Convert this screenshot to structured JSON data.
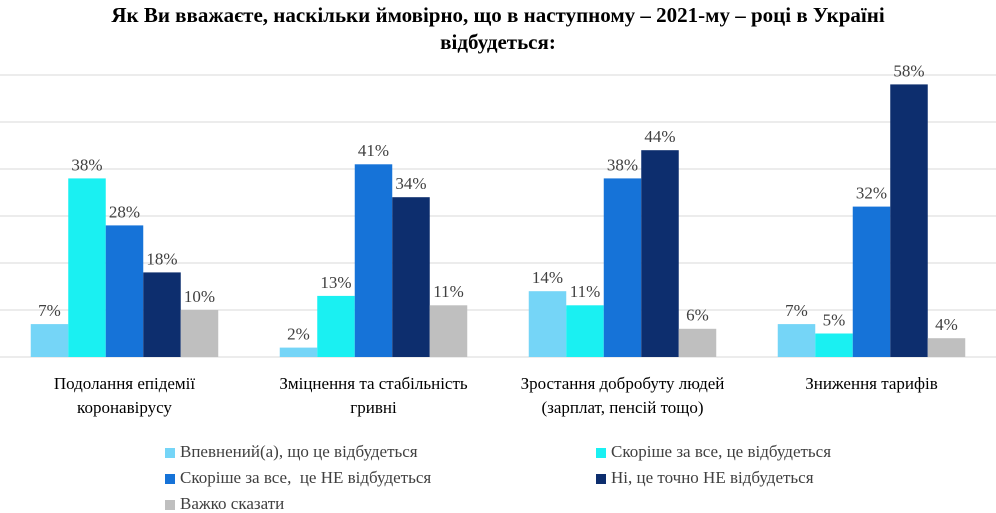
{
  "chart_data": {
    "type": "bar",
    "title": "Як Ви вважаєте, наскільки ймовірно, що в наступному – 2021-му – році в Україні відбудеться:",
    "categories": [
      "Подолання епідемії коронавірусу",
      "Зміцнення та стабільність гривні",
      "Зростання добробуту людей (зарплат, пенсій тощо)",
      "Зниження тарифів"
    ],
    "series": [
      {
        "name": "Впевнений(а), що це відбудеться",
        "color": "#75d5f7",
        "values": [
          7,
          2,
          14,
          7
        ],
        "value_labels": [
          "7%",
          "2%",
          "14%",
          "7%"
        ]
      },
      {
        "name": "Скоріше за все, це відбудеться",
        "color": "#1af0f2",
        "values": [
          38,
          13,
          11,
          5
        ],
        "value_labels": [
          "38%",
          "13%",
          "11%",
          "5%"
        ]
      },
      {
        "name": "Скоріше за все,  це НЕ відбудеться",
        "color": "#1673d8",
        "values": [
          28,
          41,
          38,
          32
        ],
        "value_labels": [
          "28%",
          "41%",
          "38%",
          "32%"
        ]
      },
      {
        "name": "Ні, це точно НЕ відбудеться",
        "color": "#0d2e6e",
        "values": [
          18,
          34,
          44,
          58
        ],
        "value_labels": [
          "18%",
          "34%",
          "44%",
          "58%"
        ]
      },
      {
        "name": "Важко сказати",
        "color": "#bfbfbf",
        "values": [
          10,
          11,
          6,
          4
        ],
        "value_labels": [
          "10%",
          "11%",
          "6%",
          "4%"
        ]
      }
    ],
    "ylim": [
      0,
      60
    ],
    "yticks": [
      0,
      10,
      20,
      30,
      40,
      50,
      60
    ],
    "grid": true
  }
}
